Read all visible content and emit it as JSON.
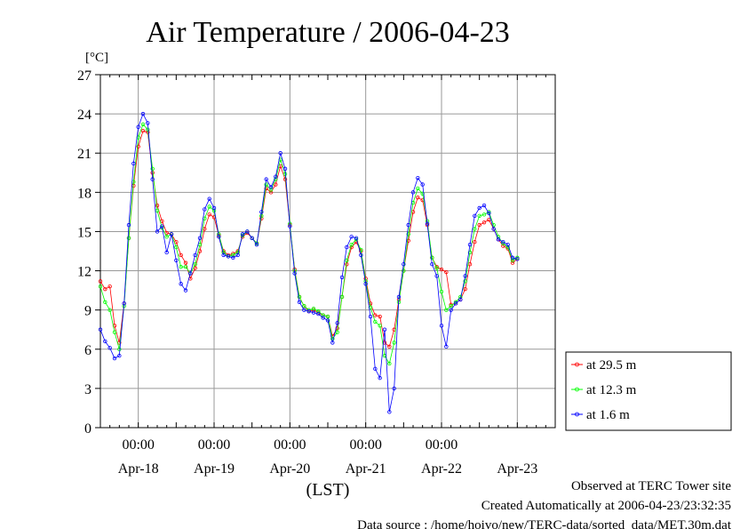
{
  "chart_data": {
    "type": "line",
    "title": "Air Temperature / 2006-04-23",
    "ylabel": "[°C]",
    "xlabel": "(LST)",
    "ylim": [
      0,
      27
    ],
    "yticks": [
      0,
      3,
      6,
      9,
      12,
      15,
      18,
      21,
      24,
      27
    ],
    "xlim_days": [
      0,
      6
    ],
    "x_unit": "hours since 2006-04-17 12:00 LST",
    "time_labels": [
      {
        "x": 12,
        "label": "00:00"
      },
      {
        "x": 36,
        "label": "00:00"
      },
      {
        "x": 60,
        "label": "00:00"
      },
      {
        "x": 84,
        "label": "00:00"
      },
      {
        "x": 108,
        "label": "00:00"
      }
    ],
    "date_labels": [
      {
        "x": 12,
        "label": "Apr-18"
      },
      {
        "x": 36,
        "label": "Apr-19"
      },
      {
        "x": 60,
        "label": "Apr-20"
      },
      {
        "x": 84,
        "label": "Apr-21"
      },
      {
        "x": 108,
        "label": "Apr-22"
      },
      {
        "x": 132,
        "label": "Apr-23"
      }
    ],
    "grid": true,
    "legend_position": "right-bottom",
    "series": [
      {
        "name": "at 29.5 m",
        "color": "#ff0000",
        "points": [
          [
            0,
            11.2
          ],
          [
            1.5,
            10.6
          ],
          [
            3,
            10.8
          ],
          [
            4.5,
            7.8
          ],
          [
            6,
            6.5
          ],
          [
            7.5,
            9.5
          ],
          [
            9,
            14.5
          ],
          [
            10.5,
            18.5
          ],
          [
            12,
            21.5
          ],
          [
            13.5,
            22.7
          ],
          [
            15,
            22.6
          ],
          [
            16.5,
            19.5
          ],
          [
            18,
            17
          ],
          [
            19.5,
            15.8
          ],
          [
            21,
            14.9
          ],
          [
            22.5,
            14.8
          ],
          [
            24,
            14.2
          ],
          [
            25.5,
            13.2
          ],
          [
            27,
            12.6
          ],
          [
            28.5,
            11.4
          ],
          [
            30,
            12.2
          ],
          [
            31.5,
            13.5
          ],
          [
            33,
            15.2
          ],
          [
            34.5,
            16.3
          ],
          [
            36,
            16.1
          ],
          [
            37.5,
            14.7
          ],
          [
            39,
            13.5
          ],
          [
            40.5,
            13.2
          ],
          [
            42,
            13.3
          ],
          [
            43.5,
            13.5
          ],
          [
            45,
            14.6
          ],
          [
            46.5,
            14.9
          ],
          [
            48,
            14.5
          ],
          [
            49.5,
            14.1
          ],
          [
            51,
            16
          ],
          [
            52.5,
            18.3
          ],
          [
            54,
            18
          ],
          [
            55.5,
            18.6
          ],
          [
            57,
            20
          ],
          [
            58.5,
            19
          ],
          [
            60,
            15.5
          ],
          [
            61.5,
            12.1
          ],
          [
            63,
            10
          ],
          [
            64.5,
            9.3
          ],
          [
            66,
            8.9
          ],
          [
            67.5,
            9
          ],
          [
            69,
            8.8
          ],
          [
            70.5,
            8.6
          ],
          [
            72,
            8.5
          ],
          [
            73.5,
            7
          ],
          [
            75,
            7.6
          ],
          [
            76.5,
            10
          ],
          [
            78,
            12.5
          ],
          [
            79.5,
            13.8
          ],
          [
            81,
            14.2
          ],
          [
            82.5,
            13.5
          ],
          [
            84,
            11.4
          ],
          [
            85.5,
            9.5
          ],
          [
            87,
            8.6
          ],
          [
            88.5,
            8.5
          ],
          [
            90,
            6.5
          ],
          [
            91.5,
            6.2
          ],
          [
            93,
            7.5
          ],
          [
            94.5,
            9.8
          ],
          [
            96,
            12
          ],
          [
            97.5,
            14.3
          ],
          [
            99,
            16.5
          ],
          [
            100.5,
            17.6
          ],
          [
            102,
            17.4
          ],
          [
            103.5,
            15.5
          ],
          [
            105,
            13
          ],
          [
            106.5,
            12.3
          ],
          [
            108,
            12.1
          ],
          [
            109.5,
            11.9
          ],
          [
            111,
            9.4
          ],
          [
            112.5,
            9.5
          ],
          [
            114,
            9.8
          ],
          [
            115.5,
            10.6
          ],
          [
            117,
            12.5
          ],
          [
            118.5,
            14.2
          ],
          [
            120,
            15.5
          ],
          [
            121.5,
            15.7
          ],
          [
            123,
            15.9
          ],
          [
            124.5,
            15.2
          ],
          [
            126,
            14.4
          ],
          [
            127.5,
            13.9
          ],
          [
            129,
            13.7
          ],
          [
            130.5,
            12.6
          ],
          [
            132,
            12.9
          ]
        ]
      },
      {
        "name": "at 12.3 m",
        "color": "#00ff00",
        "points": [
          [
            0,
            10.8
          ],
          [
            1.5,
            9.6
          ],
          [
            3,
            9
          ],
          [
            4.5,
            7.3
          ],
          [
            6,
            6
          ],
          [
            7.5,
            9.3
          ],
          [
            9,
            14.5
          ],
          [
            10.5,
            18.8
          ],
          [
            12,
            22.2
          ],
          [
            13.5,
            23.2
          ],
          [
            15,
            22.8
          ],
          [
            16.5,
            19.8
          ],
          [
            18,
            16.6
          ],
          [
            19.5,
            15.3
          ],
          [
            21,
            14.6
          ],
          [
            22.5,
            14.8
          ],
          [
            24,
            13.8
          ],
          [
            25.5,
            12.3
          ],
          [
            27,
            12.3
          ],
          [
            28.5,
            11.8
          ],
          [
            30,
            12.5
          ],
          [
            31.5,
            14
          ],
          [
            33,
            16
          ],
          [
            34.5,
            16.9
          ],
          [
            36,
            16.6
          ],
          [
            37.5,
            14.8
          ],
          [
            39,
            13.4
          ],
          [
            40.5,
            13.1
          ],
          [
            42,
            13.2
          ],
          [
            43.5,
            13.4
          ],
          [
            45,
            14.7
          ],
          [
            46.5,
            15
          ],
          [
            48,
            14.5
          ],
          [
            49.5,
            14.1
          ],
          [
            51,
            16.2
          ],
          [
            52.5,
            18.6
          ],
          [
            54,
            18.2
          ],
          [
            55.5,
            19
          ],
          [
            57,
            20.5
          ],
          [
            58.5,
            19.4
          ],
          [
            60,
            15.6
          ],
          [
            61.5,
            12
          ],
          [
            63,
            10
          ],
          [
            64.5,
            9.3
          ],
          [
            66,
            9
          ],
          [
            67.5,
            9.1
          ],
          [
            69,
            8.9
          ],
          [
            70.5,
            8.6
          ],
          [
            72,
            8.5
          ],
          [
            73.5,
            6.8
          ],
          [
            75,
            7.3
          ],
          [
            76.5,
            10
          ],
          [
            78,
            12.8
          ],
          [
            79.5,
            14
          ],
          [
            81,
            14.4
          ],
          [
            82.5,
            13.6
          ],
          [
            84,
            11.2
          ],
          [
            85.5,
            9.2
          ],
          [
            87,
            8.1
          ],
          [
            88.5,
            7.8
          ],
          [
            90,
            5.5
          ],
          [
            91.5,
            4.9
          ],
          [
            93,
            6.5
          ],
          [
            94.5,
            9.6
          ],
          [
            96,
            12
          ],
          [
            97.5,
            14.8
          ],
          [
            99,
            17.2
          ],
          [
            100.5,
            18.3
          ],
          [
            102,
            17.9
          ],
          [
            103.5,
            15.8
          ],
          [
            105,
            13
          ],
          [
            106.5,
            12.2
          ],
          [
            108,
            10.4
          ],
          [
            109.5,
            9
          ],
          [
            111,
            9.3
          ],
          [
            112.5,
            9.6
          ],
          [
            114,
            10
          ],
          [
            115.5,
            11.2
          ],
          [
            117,
            13.4
          ],
          [
            118.5,
            15.2
          ],
          [
            120,
            16.2
          ],
          [
            121.5,
            16.3
          ],
          [
            123,
            16.5
          ],
          [
            124.5,
            15.5
          ],
          [
            126,
            14.6
          ],
          [
            127.5,
            14.1
          ],
          [
            129,
            13.8
          ],
          [
            130.5,
            12.8
          ],
          [
            132,
            13
          ]
        ]
      },
      {
        "name": "at 1.6 m",
        "color": "#0000ff",
        "points": [
          [
            0,
            7.5
          ],
          [
            1.5,
            6.6
          ],
          [
            3,
            6.1
          ],
          [
            4.5,
            5.3
          ],
          [
            6,
            5.5
          ],
          [
            7.5,
            9.5
          ],
          [
            9,
            15.5
          ],
          [
            10.5,
            20.2
          ],
          [
            12,
            23
          ],
          [
            13.5,
            24
          ],
          [
            15,
            23.3
          ],
          [
            16.5,
            19
          ],
          [
            18,
            15
          ],
          [
            19.5,
            15.4
          ],
          [
            21,
            13.4
          ],
          [
            22.5,
            14.8
          ],
          [
            24,
            12.8
          ],
          [
            25.5,
            11
          ],
          [
            27,
            10.5
          ],
          [
            28.5,
            11.8
          ],
          [
            30,
            13.2
          ],
          [
            31.5,
            14.5
          ],
          [
            33,
            16.7
          ],
          [
            34.5,
            17.5
          ],
          [
            36,
            16.8
          ],
          [
            37.5,
            14.6
          ],
          [
            39,
            13.2
          ],
          [
            40.5,
            13.1
          ],
          [
            42,
            13
          ],
          [
            43.5,
            13.2
          ],
          [
            45,
            14.8
          ],
          [
            46.5,
            15
          ],
          [
            48,
            14.5
          ],
          [
            49.5,
            14
          ],
          [
            51,
            16.5
          ],
          [
            52.5,
            19
          ],
          [
            54,
            18.4
          ],
          [
            55.5,
            19.2
          ],
          [
            57,
            21
          ],
          [
            58.5,
            19.8
          ],
          [
            60,
            15.4
          ],
          [
            61.5,
            11.8
          ],
          [
            63,
            9.6
          ],
          [
            64.5,
            9
          ],
          [
            66,
            8.9
          ],
          [
            67.5,
            8.8
          ],
          [
            69,
            8.7
          ],
          [
            70.5,
            8.4
          ],
          [
            72,
            8.2
          ],
          [
            73.5,
            6.5
          ],
          [
            75,
            8
          ],
          [
            76.5,
            11.5
          ],
          [
            78,
            13.8
          ],
          [
            79.5,
            14.6
          ],
          [
            81,
            14.5
          ],
          [
            82.5,
            13.2
          ],
          [
            84,
            11
          ],
          [
            85.5,
            8.5
          ],
          [
            87,
            4.5
          ],
          [
            88.5,
            3.8
          ],
          [
            90,
            7.5
          ],
          [
            91.5,
            1.2
          ],
          [
            93,
            3
          ],
          [
            94.5,
            10
          ],
          [
            96,
            12.5
          ],
          [
            97.5,
            15.5
          ],
          [
            99,
            18
          ],
          [
            100.5,
            19.1
          ],
          [
            102,
            18.6
          ],
          [
            103.5,
            15.6
          ],
          [
            105,
            12.5
          ],
          [
            106.5,
            11.6
          ],
          [
            108,
            7.8
          ],
          [
            109.5,
            6.2
          ],
          [
            111,
            9
          ],
          [
            112.5,
            9.5
          ],
          [
            114,
            9.8
          ],
          [
            115.5,
            11.6
          ],
          [
            117,
            14
          ],
          [
            118.5,
            16.2
          ],
          [
            120,
            16.8
          ],
          [
            121.5,
            17
          ],
          [
            123,
            16.4
          ],
          [
            124.5,
            15.2
          ],
          [
            126,
            14.4
          ],
          [
            127.5,
            14.2
          ],
          [
            129,
            14
          ],
          [
            130.5,
            13
          ],
          [
            132,
            12.9
          ]
        ]
      }
    ]
  },
  "footer": {
    "line1": "Observed at TERC Tower site",
    "line2": "Created Automatically at 2006-04-23/23:32:35",
    "line3": "Data source : /home/hoivo/new/TERC-data/sorted_data/MET.30m.dat"
  }
}
